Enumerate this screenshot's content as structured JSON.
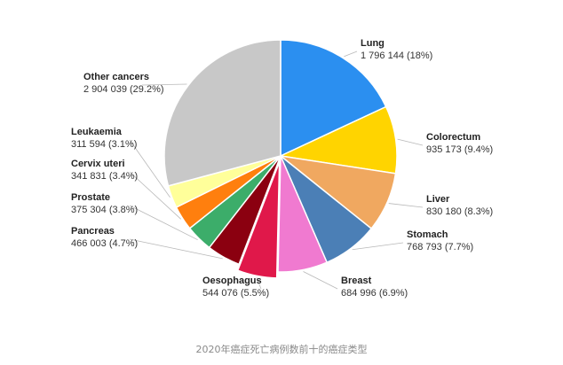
{
  "caption": "2020年癌症死亡病例数前十的癌症类型",
  "chart_data": {
    "type": "pie",
    "slices": [
      {
        "label": "Lung",
        "value_text": "1 796 144 (18%)",
        "value": 1796144,
        "percent": 18.0,
        "color": "#2b8ff0"
      },
      {
        "label": "Colorectum",
        "value_text": "935 173 (9.4%)",
        "value": 935173,
        "percent": 9.4,
        "color": "#ffd400"
      },
      {
        "label": "Liver",
        "value_text": "830 180 (8.3%)",
        "value": 830180,
        "percent": 8.3,
        "color": "#f0a860"
      },
      {
        "label": "Stomach",
        "value_text": "768 793 (7.7%)",
        "value": 768793,
        "percent": 7.7,
        "color": "#4b7fb6"
      },
      {
        "label": "Breast",
        "value_text": "684 996 (6.9%)",
        "value": 684996,
        "percent": 6.9,
        "color": "#f07ad0"
      },
      {
        "label": "Oesophagus",
        "value_text": "544 076 (5.5%)",
        "value": 544076,
        "percent": 5.5,
        "color": "#e0184a"
      },
      {
        "label": "Pancreas",
        "value_text": "466 003 (4.7%)",
        "value": 466003,
        "percent": 4.7,
        "color": "#8b0010"
      },
      {
        "label": "Prostate",
        "value_text": "375 304 (3.8%)",
        "value": 375304,
        "percent": 3.8,
        "color": "#3cad6a"
      },
      {
        "label": "Cervix uteri",
        "value_text": "341 831 (3.4%)",
        "value": 341831,
        "percent": 3.4,
        "color": "#ff7f0e"
      },
      {
        "label": "Leukaemia",
        "value_text": "311 594 (3.1%)",
        "value": 311594,
        "percent": 3.1,
        "color": "#ffff9a"
      },
      {
        "label": "Other cancers",
        "value_text": "2 904 039 (29.2%)",
        "value": 2904039,
        "percent": 29.2,
        "color": "#c8c8c8"
      }
    ]
  }
}
